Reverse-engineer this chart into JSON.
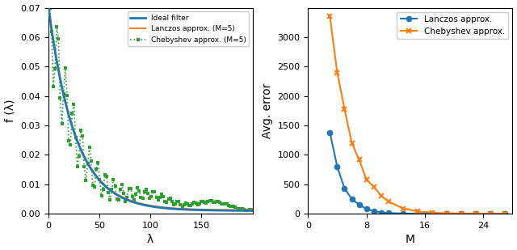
{
  "left_plot": {
    "xlabel": "λ",
    "ylabel": "f (λ)",
    "xlim": [
      0,
      200
    ],
    "ylim": [
      0,
      0.07
    ],
    "yticks": [
      0.0,
      0.01,
      0.02,
      0.03,
      0.04,
      0.05,
      0.06,
      0.07
    ],
    "xticks": [
      0,
      50,
      100,
      150
    ],
    "ideal_color": "#1f77b4",
    "lanczos_color": "#ff7f0e",
    "cheby_color": "#2ca02c",
    "legend_labels": [
      "Ideal filter",
      "Lanczos approx. (M=5)",
      "Chebyshev approx. (M=5)"
    ]
  },
  "right_plot": {
    "xlabel": "M",
    "ylabel": "Avg. error",
    "xlim": [
      2,
      28
    ],
    "ylim": [
      0,
      3500
    ],
    "xticks": [
      0,
      8,
      16,
      24
    ],
    "yticks": [
      0,
      500,
      1000,
      1500,
      2000,
      2500,
      3000
    ],
    "lanczos_M": [
      3,
      4,
      5,
      6,
      7,
      8,
      9,
      10,
      11,
      13,
      15,
      17,
      19,
      21,
      23,
      25,
      27
    ],
    "lanczos_err": [
      1380,
      800,
      430,
      250,
      155,
      80,
      45,
      22,
      12,
      4,
      1.5,
      0.7,
      0.3,
      0.15,
      0.08,
      0.05,
      0.03
    ],
    "cheby_M": [
      3,
      4,
      5,
      6,
      7,
      8,
      9,
      10,
      11,
      13,
      15,
      17,
      19,
      21,
      23,
      25,
      27
    ],
    "cheby_err": [
      3350,
      2400,
      1780,
      1200,
      920,
      580,
      460,
      310,
      210,
      90,
      40,
      18,
      8,
      3.5,
      1.5,
      0.7,
      0.3
    ],
    "lanczos_color": "#1f77b4",
    "cheby_color": "#ff7f0e",
    "legend_labels": [
      "Lanczos approx.",
      "Chebyshev approx."
    ]
  }
}
